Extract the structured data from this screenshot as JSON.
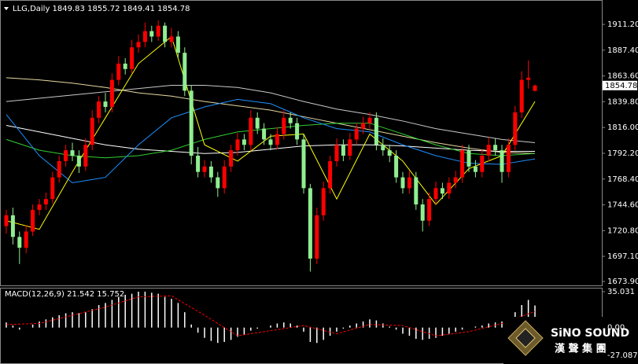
{
  "header": "LLG,Daily  1849.83 1855.72 1849.41 1854.78",
  "chart_data": [
    {
      "type": "candlestick",
      "up_color": "#ff0000",
      "down_color": "#90ee90",
      "open": [
        1725,
        1735,
        1715,
        1705,
        1720,
        1740,
        1745,
        1750,
        1770,
        1785,
        1795,
        1790,
        1780,
        1800,
        1825,
        1840,
        1835,
        1860,
        1875,
        1870,
        1890,
        1895,
        1905,
        1900,
        1910,
        1895,
        1900,
        1885,
        1850,
        1790,
        1775,
        1780,
        1770,
        1760,
        1780,
        1795,
        1805,
        1800,
        1825,
        1815,
        1805,
        1800,
        1810,
        1825,
        1820,
        1805,
        1760,
        1695,
        1735,
        1760,
        1785,
        1800,
        1790,
        1805,
        1815,
        1820,
        1825,
        1800,
        1795,
        1790,
        1770,
        1760,
        1770,
        1745,
        1730,
        1750,
        1760,
        1755,
        1765,
        1770,
        1795,
        1780,
        1775,
        1790,
        1800,
        1795,
        1775,
        1800,
        1830,
        1860,
        1849.83
      ],
      "high": [
        1740,
        1742,
        1720,
        1726,
        1745,
        1750,
        1756,
        1775,
        1790,
        1800,
        1802,
        1795,
        1806,
        1832,
        1845,
        1848,
        1866,
        1882,
        1880,
        1897,
        1902,
        1913,
        1910,
        1915,
        1913,
        1908,
        1905,
        1890,
        1855,
        1798,
        1786,
        1785,
        1775,
        1786,
        1800,
        1811,
        1810,
        1832,
        1830,
        1820,
        1810,
        1816,
        1832,
        1830,
        1825,
        1810,
        1764,
        1742,
        1766,
        1790,
        1806,
        1805,
        1811,
        1820,
        1826,
        1830,
        1830,
        1806,
        1800,
        1795,
        1775,
        1776,
        1775,
        1750,
        1756,
        1766,
        1765,
        1770,
        1776,
        1800,
        1800,
        1786,
        1796,
        1807,
        1806,
        1800,
        1806,
        1836,
        1868,
        1878,
        1855.72
      ],
      "low": [
        1718,
        1708,
        1690,
        1700,
        1716,
        1735,
        1740,
        1746,
        1765,
        1780,
        1785,
        1774,
        1776,
        1795,
        1820,
        1830,
        1830,
        1855,
        1865,
        1866,
        1885,
        1890,
        1895,
        1896,
        1890,
        1890,
        1880,
        1845,
        1782,
        1770,
        1770,
        1765,
        1752,
        1755,
        1775,
        1790,
        1795,
        1795,
        1810,
        1800,
        1795,
        1796,
        1805,
        1815,
        1800,
        1755,
        1683,
        1690,
        1730,
        1755,
        1780,
        1785,
        1786,
        1800,
        1810,
        1815,
        1795,
        1790,
        1784,
        1765,
        1755,
        1755,
        1740,
        1720,
        1725,
        1745,
        1750,
        1750,
        1760,
        1765,
        1775,
        1770,
        1770,
        1785,
        1790,
        1765,
        1770,
        1795,
        1825,
        1852,
        1849.41
      ],
      "close": [
        1735,
        1715,
        1705,
        1720,
        1740,
        1745,
        1750,
        1770,
        1785,
        1795,
        1790,
        1780,
        1800,
        1825,
        1840,
        1835,
        1860,
        1875,
        1870,
        1890,
        1895,
        1905,
        1900,
        1910,
        1895,
        1900,
        1885,
        1850,
        1790,
        1775,
        1780,
        1770,
        1760,
        1780,
        1795,
        1805,
        1800,
        1825,
        1815,
        1805,
        1800,
        1810,
        1825,
        1820,
        1805,
        1760,
        1695,
        1735,
        1760,
        1785,
        1800,
        1790,
        1805,
        1815,
        1820,
        1825,
        1800,
        1795,
        1790,
        1770,
        1760,
        1770,
        1745,
        1730,
        1750,
        1760,
        1755,
        1765,
        1770,
        1795,
        1780,
        1775,
        1790,
        1800,
        1795,
        1775,
        1800,
        1830,
        1860,
        1862,
        1854.78
      ],
      "overlays": [
        {
          "color": "#c8c8c8",
          "x": [
            0,
            5,
            10,
            15,
            20,
            25,
            30,
            35,
            40,
            45,
            50,
            55,
            60,
            65,
            70,
            75,
            80
          ],
          "values": [
            1840,
            1843,
            1846,
            1849,
            1852,
            1855,
            1855,
            1853,
            1848,
            1840,
            1833,
            1828,
            1822,
            1815,
            1810,
            1805,
            1802
          ]
        },
        {
          "color": "#e6d8a0",
          "x": [
            0,
            5,
            10,
            15,
            20,
            25,
            30,
            35,
            40,
            45,
            50,
            55,
            60,
            65,
            70,
            75,
            80
          ],
          "values": [
            1862,
            1860,
            1857,
            1853,
            1848,
            1845,
            1840,
            1836,
            1832,
            1826,
            1820,
            1814,
            1808,
            1802,
            1797,
            1793,
            1792
          ]
        },
        {
          "color": "#ffffff",
          "x": [
            0,
            5,
            10,
            15,
            20,
            25,
            30,
            35,
            40,
            45,
            50,
            55,
            60,
            65,
            70,
            75,
            80
          ],
          "values": [
            1818,
            1812,
            1806,
            1800,
            1796,
            1794,
            1792,
            1793,
            1796,
            1799,
            1800,
            1800,
            1799,
            1797,
            1795,
            1794,
            1794
          ]
        },
        {
          "color": "#32cd32",
          "x": [
            0,
            5,
            10,
            15,
            20,
            25,
            30,
            35,
            40,
            45,
            50,
            55,
            60,
            65,
            70,
            75,
            80
          ],
          "values": [
            1805,
            1795,
            1790,
            1788,
            1790,
            1795,
            1805,
            1812,
            1815,
            1818,
            1820,
            1820,
            1810,
            1800,
            1792,
            1790,
            1792
          ]
        },
        {
          "color": "#1e90ff",
          "x": [
            0,
            5,
            10,
            15,
            20,
            25,
            30,
            35,
            40,
            45,
            50,
            55,
            60,
            65,
            70,
            75,
            80
          ],
          "values": [
            1828,
            1790,
            1765,
            1770,
            1800,
            1825,
            1835,
            1842,
            1838,
            1825,
            1815,
            1812,
            1800,
            1790,
            1783,
            1782,
            1787
          ]
        },
        {
          "color": "#ffff00",
          "x": [
            0,
            5,
            10,
            15,
            20,
            25,
            30,
            35,
            40,
            45,
            50,
            55,
            60,
            65,
            70,
            75,
            80
          ],
          "values": [
            1730,
            1722,
            1775,
            1825,
            1875,
            1900,
            1800,
            1785,
            1808,
            1810,
            1750,
            1810,
            1785,
            1745,
            1778,
            1790,
            1840
          ]
        }
      ],
      "last_price": {
        "value": 1854.78,
        "label": "1854.78"
      },
      "ylim": [
        1669.55,
        1933.0
      ],
      "yticks": [
        {
          "value": 1911.2,
          "label": "1911.20"
        },
        {
          "value": 1887.4,
          "label": "1887.40"
        },
        {
          "value": 1863.6,
          "label": "1863.60"
        },
        {
          "value": 1839.8,
          "label": "1839.80"
        },
        {
          "value": 1816,
          "label": "1816.00"
        },
        {
          "value": 1792.2,
          "label": "1792.20"
        },
        {
          "value": 1768.4,
          "label": "1768.40"
        },
        {
          "value": 1744.6,
          "label": "1744.60"
        },
        {
          "value": 1720.8,
          "label": "1720.80"
        },
        {
          "value": 1697.1,
          "label": "1697.10"
        },
        {
          "value": 1673.9,
          "label": "1673.90"
        }
      ]
    },
    {
      "type": "macd",
      "title": "MACD(12,26,9) 21.542 15.752",
      "color": "#ffffff",
      "signal_color": "#ff0000",
      "values": [
        5,
        2,
        -2,
        0,
        3,
        6,
        8,
        10,
        12,
        14,
        15,
        14,
        15,
        18,
        22,
        24,
        27,
        30,
        32,
        33,
        35,
        35,
        34,
        33,
        30,
        28,
        24,
        15,
        3,
        -5,
        -10,
        -13,
        -15,
        -14,
        -12,
        -9,
        -7,
        -3,
        -1,
        0,
        2,
        4,
        5,
        4,
        2,
        -4,
        -14,
        -15,
        -12,
        -8,
        -4,
        -1,
        2,
        4,
        6,
        8,
        7,
        4,
        1,
        -2,
        -6,
        -8,
        -11,
        -12,
        -11,
        -10,
        -8,
        -6,
        -4,
        -2,
        0,
        1,
        2,
        4,
        5,
        6,
        9,
        15,
        22,
        27,
        21.542
      ],
      "signal_x": [
        0,
        5,
        10,
        15,
        20,
        25,
        30,
        35,
        40,
        45,
        50,
        55,
        60,
        65,
        70,
        75,
        80
      ],
      "signal": [
        3,
        4,
        12,
        20,
        30,
        31,
        12,
        -8,
        -3,
        2,
        -6,
        3,
        2,
        -8,
        -4,
        4,
        15.752
      ],
      "ylim": [
        -34.76,
        38.865
      ],
      "yticks": [
        35.031,
        {
          "value": 0,
          "label": "0.00"
        },
        -27.087
      ]
    }
  ],
  "logo": {
    "name": "SiNO SOUND",
    "subtitle": "漢 聲 集 團"
  }
}
